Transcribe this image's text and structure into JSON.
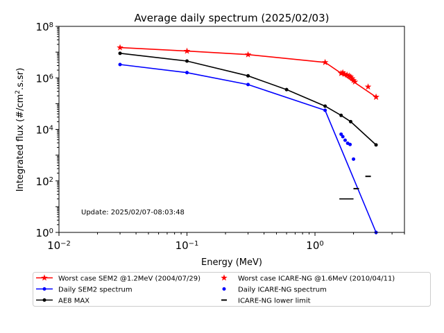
{
  "chart_data": {
    "type": "line",
    "title": "Average daily spectrum (2025/02/03)",
    "xlabel": "Energy (MeV)",
    "ylabel_base": "Integrated flux (#/cm",
    "ylabel_sup": "2",
    "ylabel_rest": ".s.sr)",
    "x_scale": "log",
    "y_scale": "log",
    "xlim": [
      0.01,
      5
    ],
    "ylim": [
      1,
      100000000
    ],
    "x_ticks": [
      {
        "value": 0.01,
        "base": "10",
        "exp": "−2"
      },
      {
        "value": 0.1,
        "base": "10",
        "exp": "−1"
      },
      {
        "value": 1,
        "base": "10",
        "exp": "0"
      }
    ],
    "y_ticks": [
      {
        "value": 1,
        "base": "10",
        "exp": "0"
      },
      {
        "value": 100,
        "base": "10",
        "exp": "2"
      },
      {
        "value": 10000,
        "base": "10",
        "exp": "4"
      },
      {
        "value": 1000000,
        "base": "10",
        "exp": "6"
      },
      {
        "value": 100000000,
        "base": "10",
        "exp": "8"
      }
    ],
    "grid": false,
    "legend_position": "below",
    "annotation": "Update: 2025/02/07-08:03:48",
    "series": [
      {
        "name": "Worst case SEM2 @1.2MeV (2004/07/29)",
        "kind": "line",
        "marker": "star",
        "color": "#ff0000",
        "x": [
          0.03,
          0.1,
          0.3,
          1.2,
          3.0
        ],
        "y": [
          15000000,
          11000000,
          8000000,
          4000000,
          180000
        ]
      },
      {
        "name": "Daily SEM2 spectrum",
        "kind": "line",
        "marker": "dot",
        "color": "#0000ff",
        "x": [
          0.03,
          0.1,
          0.3,
          1.2,
          3.0
        ],
        "y": [
          3300000,
          1600000,
          550000,
          55000,
          1
        ]
      },
      {
        "name": "AE8 MAX",
        "kind": "line",
        "marker": "dot",
        "color": "#000000",
        "x": [
          0.03,
          0.1,
          0.3,
          0.6,
          1.2,
          1.6,
          1.9,
          3.0
        ],
        "y": [
          9000000,
          4500000,
          1200000,
          350000,
          80000,
          35000,
          20000,
          2500
        ]
      },
      {
        "name": "Worst case ICARE-NG @1.6MeV (2010/04/11)",
        "kind": "scatter",
        "marker": "star",
        "color": "#ff0000",
        "x": [
          1.6,
          1.65,
          1.7,
          1.78,
          1.85,
          1.9,
          1.95,
          2.0,
          2.05,
          2.6,
          3.0
        ],
        "y": [
          1500000,
          1600000,
          1400000,
          1300000,
          1200000,
          1100000,
          950000,
          800000,
          700000,
          450000,
          180000
        ]
      },
      {
        "name": "Daily ICARE-NG spectrum",
        "kind": "scatter",
        "marker": "dot",
        "color": "#0000ff",
        "x": [
          1.6,
          1.65,
          1.72,
          1.8,
          1.88,
          2.0
        ],
        "y": [
          6500,
          5200,
          3800,
          2900,
          2600,
          700
        ]
      },
      {
        "name": "ICARE-NG lower limit",
        "kind": "lowerlimit",
        "marker": "hbar",
        "color": "#000000",
        "x": [
          2.6,
          2.1
        ],
        "y": [
          150,
          50
        ],
        "extra_segment": {
          "x": [
            1.55,
            2.0
          ],
          "y": [
            20,
            20
          ]
        }
      }
    ],
    "legend": [
      {
        "series": 0,
        "column": 0,
        "row": 0
      },
      {
        "series": 1,
        "column": 0,
        "row": 1
      },
      {
        "series": 2,
        "column": 0,
        "row": 2
      },
      {
        "series": 3,
        "column": 1,
        "row": 0
      },
      {
        "series": 4,
        "column": 1,
        "row": 1
      },
      {
        "series": 5,
        "column": 1,
        "row": 2
      }
    ]
  }
}
